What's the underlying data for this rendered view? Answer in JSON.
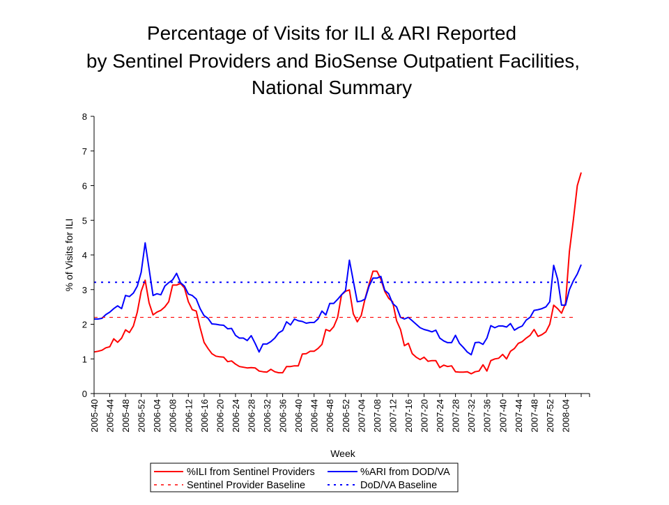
{
  "chart_data": {
    "type": "line",
    "title": [
      "Percentage of Visits for ILI & ARI Reported",
      "by Sentinel Providers and BioSense Outpatient Facilities,",
      "National Summary"
    ],
    "xlabel": "Week",
    "ylabel": "% of Visits for ILI",
    "ylim": [
      0,
      8
    ],
    "yticks": [
      "0",
      "1",
      "2",
      "3",
      "4",
      "5",
      "6",
      "7",
      "8"
    ],
    "grid": false,
    "legend_position": "bottom",
    "x": [
      "2005-40",
      "2005-41",
      "2005-42",
      "2005-43",
      "2005-44",
      "2005-45",
      "2005-46",
      "2005-47",
      "2005-48",
      "2005-49",
      "2005-50",
      "2005-51",
      "2005-52",
      "2006-01",
      "2006-02",
      "2006-03",
      "2006-04",
      "2006-05",
      "2006-06",
      "2006-07",
      "2006-08",
      "2006-09",
      "2006-10",
      "2006-11",
      "2006-12",
      "2006-13",
      "2006-14",
      "2006-15",
      "2006-16",
      "2006-17",
      "2006-18",
      "2006-19",
      "2006-20",
      "2006-21",
      "2006-22",
      "2006-23",
      "2006-24",
      "2006-25",
      "2006-26",
      "2006-27",
      "2006-28",
      "2006-29",
      "2006-30",
      "2006-31",
      "2006-32",
      "2006-33",
      "2006-34",
      "2006-35",
      "2006-36",
      "2006-37",
      "2006-38",
      "2006-39",
      "2006-40",
      "2006-41",
      "2006-42",
      "2006-43",
      "2006-44",
      "2006-45",
      "2006-46",
      "2006-47",
      "2006-48",
      "2006-49",
      "2006-50",
      "2006-51",
      "2006-52",
      "2007-01",
      "2007-02",
      "2007-03",
      "2007-04",
      "2007-05",
      "2007-06",
      "2007-07",
      "2007-08",
      "2007-09",
      "2007-10",
      "2007-11",
      "2007-12",
      "2007-13",
      "2007-14",
      "2007-15",
      "2007-16",
      "2007-17",
      "2007-18",
      "2007-19",
      "2007-20",
      "2007-21",
      "2007-22",
      "2007-23",
      "2007-24",
      "2007-25",
      "2007-26",
      "2007-27",
      "2007-28",
      "2007-29",
      "2007-30",
      "2007-31",
      "2007-32",
      "2007-33",
      "2007-34",
      "2007-35",
      "2007-36",
      "2007-37",
      "2007-38",
      "2007-39",
      "2007-40",
      "2007-41",
      "2007-42",
      "2007-43",
      "2007-44",
      "2007-45",
      "2007-46",
      "2007-47",
      "2007-48",
      "2007-49",
      "2007-50",
      "2007-51",
      "2007-52",
      "2008-01",
      "2008-02",
      "2008-03",
      "2008-04",
      "2008-05",
      "2008-06",
      "2008-07",
      "2008-08"
    ],
    "xtick_labels": [
      "2005-40",
      "2005-44",
      "2005-48",
      "2005-52",
      "2006-04",
      "2006-08",
      "2006-12",
      "2006-16",
      "2006-20",
      "2006-24",
      "2006-28",
      "2006-32",
      "2006-36",
      "2006-40",
      "2006-44",
      "2006-48",
      "2006-52",
      "2007-04",
      "2007-08",
      "2007-12",
      "2007-16",
      "2007-20",
      "2007-24",
      "2007-28",
      "2007-32",
      "2007-36",
      "2007-40",
      "2007-44",
      "2007-48",
      "2007-52",
      "2008-04"
    ],
    "series": [
      {
        "name": "%ILI from Sentinel Providers",
        "color": "#ff0000",
        "style": "solid",
        "values": [
          1.2,
          1.22,
          1.25,
          1.32,
          1.35,
          1.58,
          1.48,
          1.6,
          1.84,
          1.76,
          1.95,
          2.35,
          2.95,
          3.27,
          2.62,
          2.27,
          2.35,
          2.4,
          2.5,
          2.65,
          3.13,
          3.13,
          3.18,
          3.05,
          2.65,
          2.42,
          2.38,
          1.9,
          1.48,
          1.3,
          1.15,
          1.08,
          1.06,
          1.05,
          0.92,
          0.94,
          0.85,
          0.78,
          0.76,
          0.74,
          0.75,
          0.74,
          0.65,
          0.63,
          0.62,
          0.7,
          0.63,
          0.6,
          0.6,
          0.78,
          0.78,
          0.8,
          0.8,
          1.14,
          1.15,
          1.22,
          1.22,
          1.3,
          1.42,
          1.85,
          1.8,
          1.93,
          2.2,
          2.85,
          2.95,
          2.99,
          2.3,
          2.07,
          2.25,
          2.75,
          3.15,
          3.53,
          3.53,
          3.3,
          2.95,
          2.75,
          2.65,
          2.1,
          1.85,
          1.38,
          1.45,
          1.15,
          1.05,
          0.98,
          1.05,
          0.93,
          0.95,
          0.95,
          0.75,
          0.82,
          0.78,
          0.8,
          0.63,
          0.62,
          0.62,
          0.63,
          0.57,
          0.63,
          0.65,
          0.83,
          0.65,
          0.95,
          1.0,
          1.02,
          1.13,
          1.0,
          1.22,
          1.3,
          1.45,
          1.5,
          1.6,
          1.68,
          1.85,
          1.65,
          1.7,
          1.78,
          2.0,
          2.55,
          2.45,
          2.32,
          2.6,
          4.1,
          5.0,
          6.0,
          6.38
        ]
      },
      {
        "name": "%ARI from DOD/VA",
        "color": "#0000ff",
        "style": "solid",
        "values": [
          2.15,
          2.15,
          2.17,
          2.28,
          2.35,
          2.45,
          2.53,
          2.45,
          2.83,
          2.8,
          2.9,
          3.1,
          3.5,
          4.35,
          3.6,
          2.83,
          2.88,
          2.85,
          3.1,
          3.2,
          3.28,
          3.47,
          3.2,
          3.1,
          2.87,
          2.83,
          2.73,
          2.45,
          2.25,
          2.17,
          2.01,
          2.0,
          1.98,
          1.97,
          1.87,
          1.88,
          1.68,
          1.6,
          1.6,
          1.53,
          1.67,
          1.45,
          1.2,
          1.43,
          1.43,
          1.5,
          1.6,
          1.75,
          1.82,
          2.07,
          1.98,
          2.15,
          2.1,
          2.08,
          2.03,
          2.05,
          2.05,
          2.15,
          2.38,
          2.27,
          2.6,
          2.6,
          2.72,
          2.85,
          2.97,
          3.85,
          3.25,
          2.65,
          2.67,
          2.73,
          3.1,
          3.33,
          3.33,
          3.38,
          2.98,
          2.88,
          2.6,
          2.5,
          2.2,
          2.15,
          2.2,
          2.1,
          2.0,
          1.9,
          1.85,
          1.82,
          1.78,
          1.83,
          1.6,
          1.52,
          1.47,
          1.47,
          1.68,
          1.45,
          1.33,
          1.2,
          1.12,
          1.47,
          1.48,
          1.42,
          1.6,
          1.96,
          1.9,
          1.95,
          1.95,
          1.92,
          2.02,
          1.83,
          1.9,
          1.95,
          2.12,
          2.2,
          2.4,
          2.42,
          2.45,
          2.5,
          2.65,
          3.7,
          3.3,
          2.55,
          2.55,
          3.0,
          3.25,
          3.45,
          3.72
        ]
      },
      {
        "name": "Sentinel Provider Baseline",
        "color": "#ff0000",
        "style": "dashed",
        "constant": 2.2
      },
      {
        "name": "DoD/VA Baseline",
        "color": "#0000ff",
        "style": "dotted",
        "constant": 3.21
      }
    ]
  }
}
